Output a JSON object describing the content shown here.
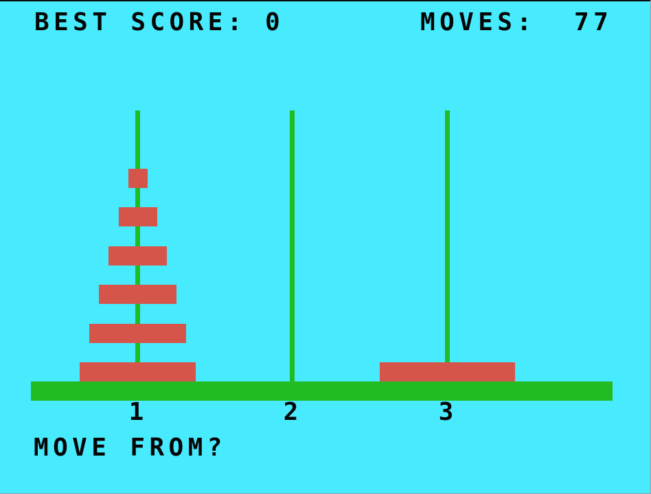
{
  "colors": {
    "background": "#48EAFD",
    "green": "#22BB22",
    "disc_red": "#D5554B",
    "text": "#050505"
  },
  "header": {
    "best_score_label": "BEST SCORE:",
    "best_score_value": "0",
    "moves_label": "MOVES:",
    "moves_value": "77"
  },
  "game": {
    "pegs": [
      {
        "id": 1,
        "label": "1",
        "discs_bottom_to_top": [
          6,
          5,
          4,
          3,
          2,
          1
        ]
      },
      {
        "id": 2,
        "label": "2",
        "discs_bottom_to_top": []
      },
      {
        "id": 3,
        "label": "3",
        "discs_bottom_to_top": [
          7
        ]
      }
    ],
    "disc_count": 7
  },
  "prompt": {
    "text": "MOVE FROM?"
  }
}
